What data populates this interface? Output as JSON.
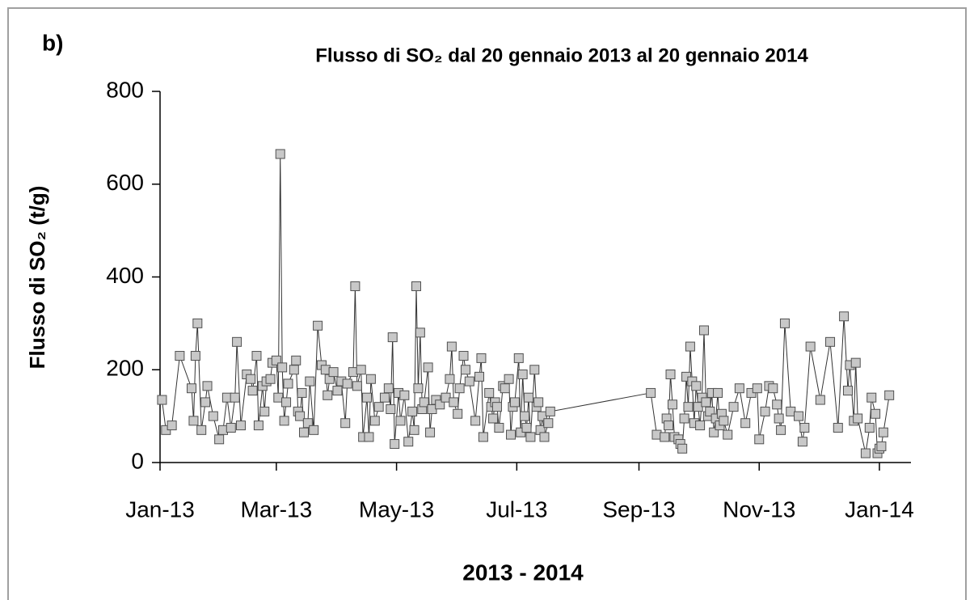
{
  "chart_data": {
    "type": "line",
    "panel_label": "b)",
    "title": "Flusso di SO₂ dal 20 gennaio 2013 al 20 gennaio 2014",
    "xlabel": "2013 - 2014",
    "ylabel": "Flusso di SO₂  (t/g)",
    "line_color": "#333333",
    "marker_color": "#c8c8c8",
    "marker_edge": "#505050",
    "x": [
      41276,
      41278,
      41281,
      41285,
      41291,
      41292,
      41293,
      41294,
      41296,
      41298,
      41299,
      41302,
      41305,
      41307,
      41309,
      41311,
      41313,
      41314,
      41316,
      41319,
      41321,
      41322,
      41324,
      41325,
      41327,
      41328,
      41329,
      41331,
      41332,
      41334,
      41335,
      41336,
      41337,
      41338,
      41339,
      41340,
      41343,
      41344,
      41345,
      41346,
      41347,
      41348,
      41350,
      41351,
      41353,
      41355,
      41357,
      41359,
      41360,
      41361,
      41363,
      41365,
      41367,
      41369,
      41370,
      41373,
      41374,
      41375,
      41377,
      41378,
      41380,
      41381,
      41382,
      41384,
      41386,
      41389,
      41391,
      41392,
      41393,
      41394,
      41396,
      41397,
      41399,
      41401,
      41403,
      41404,
      41405,
      41406,
      41407,
      41408,
      41409,
      41411,
      41412,
      41413,
      41415,
      41417,
      41420,
      41422,
      41423,
      41424,
      41426,
      41427,
      41429,
      41430,
      41432,
      41435,
      41437,
      41438,
      41439,
      41442,
      41443,
      41444,
      41445,
      41446,
      41447,
      41449,
      41450,
      41452,
      41453,
      41454,
      41455,
      41457,
      41458,
      41459,
      41460,
      41461,
      41462,
      41463,
      41465,
      41466,
      41467,
      41468,
      41469,
      41470,
      41472,
      41473,
      41524,
      41527,
      41531,
      41532,
      41533,
      41534,
      41535,
      41536,
      41538,
      41539,
      41540,
      41541,
      41542,
      41543,
      41544,
      41545,
      41546,
      41547,
      41548,
      41549,
      41550,
      41551,
      41552,
      41553,
      41554,
      41555,
      41556,
      41557,
      41558,
      41559,
      41560,
      41561,
      41563,
      41566,
      41569,
      41572,
      41575,
      41578,
      41579,
      41582,
      41584,
      41586,
      41588,
      41589,
      41590,
      41592,
      41595,
      41599,
      41601,
      41602,
      41605,
      41610,
      41615,
      41619,
      41622,
      41624,
      41625,
      41627,
      41628,
      41629,
      41633,
      41635,
      41636,
      41638,
      41639,
      41640,
      41641,
      41642,
      41645
    ],
    "values": [
      135,
      70,
      80,
      230,
      160,
      90,
      230,
      300,
      70,
      130,
      165,
      100,
      50,
      70,
      140,
      75,
      140,
      260,
      80,
      190,
      180,
      155,
      230,
      80,
      165,
      110,
      175,
      180,
      215,
      220,
      140,
      665,
      205,
      90,
      130,
      170,
      200,
      220,
      110,
      100,
      150,
      65,
      85,
      175,
      70,
      295,
      210,
      200,
      145,
      180,
      195,
      155,
      175,
      85,
      170,
      195,
      380,
      165,
      200,
      55,
      140,
      55,
      180,
      90,
      120,
      140,
      160,
      115,
      270,
      40,
      150,
      90,
      145,
      45,
      110,
      70,
      380,
      160,
      280,
      115,
      130,
      205,
      65,
      115,
      135,
      125,
      140,
      180,
      250,
      130,
      105,
      160,
      230,
      200,
      175,
      90,
      185,
      225,
      55,
      150,
      120,
      95,
      130,
      120,
      75,
      165,
      160,
      180,
      60,
      120,
      130,
      225,
      65,
      190,
      100,
      75,
      140,
      55,
      200,
      120,
      130,
      70,
      100,
      55,
      85,
      110,
      150,
      60,
      55,
      95,
      80,
      190,
      125,
      55,
      50,
      40,
      30,
      95,
      185,
      120,
      250,
      175,
      85,
      165,
      120,
      80,
      140,
      285,
      130,
      100,
      110,
      150,
      65,
      95,
      150,
      80,
      105,
      90,
      60,
      120,
      160,
      85,
      150,
      160,
      50,
      110,
      165,
      160,
      125,
      95,
      70,
      300,
      110,
      100,
      45,
      75,
      250,
      135,
      260,
      75,
      315,
      155,
      210,
      90,
      215,
      95,
      20,
      75,
      140,
      105,
      20,
      30,
      35,
      65,
      145
    ],
    "xlim": [
      41275,
      41656
    ],
    "xticks": [
      {
        "value": 41275,
        "label": "Jan-13"
      },
      {
        "value": 41334,
        "label": "Mar-13"
      },
      {
        "value": 41395,
        "label": "May-13"
      },
      {
        "value": 41456,
        "label": "Jul-13"
      },
      {
        "value": 41518,
        "label": "Sep-13"
      },
      {
        "value": 41579,
        "label": "Nov-13"
      },
      {
        "value": 41640,
        "label": "Jan-14"
      }
    ],
    "ylim": [
      0,
      800
    ],
    "yticks": [
      0,
      200,
      400,
      600,
      800
    ]
  }
}
